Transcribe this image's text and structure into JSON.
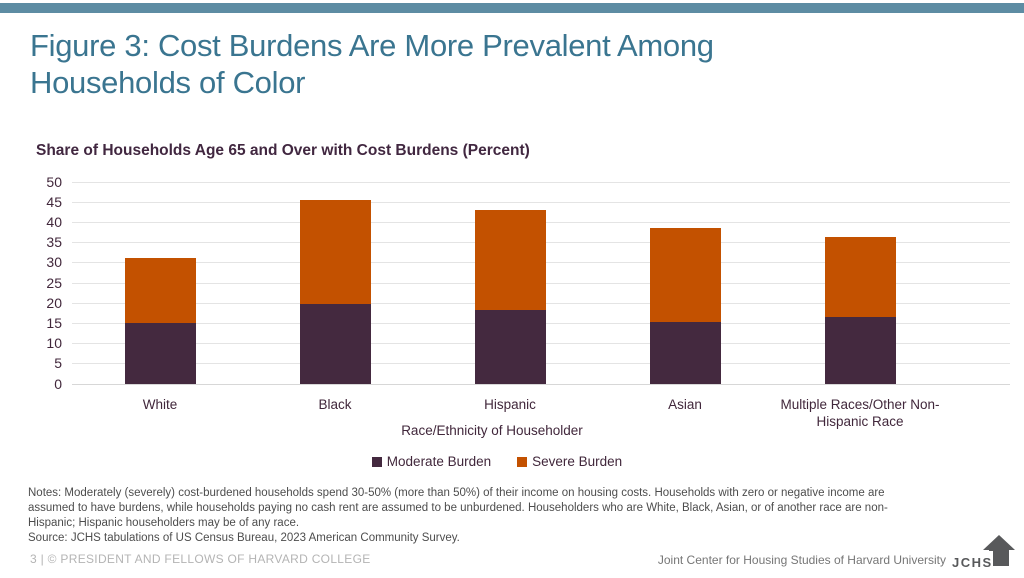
{
  "slide": {
    "title": "Figure 3: Cost Burdens Are More Prevalent Among Households of Color"
  },
  "colors": {
    "accent_bar": "#5d8ca3",
    "title_text": "#3a7590",
    "moderate_burden": "#44293f",
    "severe_burden": "#c35100",
    "axis_text": "#41273b",
    "gridline": "#e4e4e4",
    "notes_text": "#4d4d4d",
    "footer_left_text": "#b4b4b4",
    "footer_right_text": "#767676",
    "logo_gray": "#58595b"
  },
  "chart_data": {
    "type": "bar",
    "stacked": true,
    "title": "Share of Households Age 65 and Over with Cost Burdens (Percent)",
    "xlabel": "Race/Ethnicity of Householder",
    "ylabel": "",
    "ylim": [
      0,
      50
    ],
    "ytick_step": 5,
    "grid": true,
    "legend_position": "bottom",
    "categories": [
      "White",
      "Black",
      "Hispanic",
      "Asian",
      "Multiple Races/Other Non-Hispanic Race"
    ],
    "series": [
      {
        "name": "Moderate Burden",
        "color": "#44293f",
        "values": [
          15.0,
          19.7,
          18.2,
          15.4,
          16.5
        ]
      },
      {
        "name": "Severe Burden",
        "color": "#c35100",
        "values": [
          16.3,
          25.8,
          24.9,
          23.1,
          20.0
        ]
      }
    ]
  },
  "notes": {
    "notes_text": "Notes: Moderately (severely) cost-burdened households spend 30-50% (more than 50%) of their income on housing costs. Households with zero or negative income are assumed to have burdens, while households paying no cash rent are assumed to be unburdened. Householders who are White, Black, Asian, or of another race are non-Hispanic; Hispanic householders may be of any race.",
    "source_text": "Source: JCHS tabulations of US Census Bureau, 2023 American Community Survey."
  },
  "footer": {
    "left_text": "3 | © PRESIDENT AND FELLOWS OF HARVARD COLLEGE",
    "right_text": "Joint Center for Housing Studies of Harvard University",
    "logo_text": "JCHS"
  }
}
